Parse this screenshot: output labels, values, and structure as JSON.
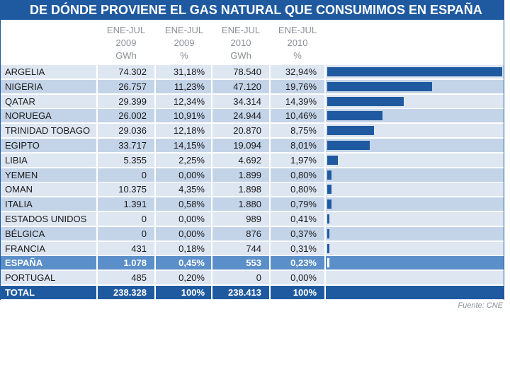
{
  "title": "DE DÓNDE PROVIENE EL GAS NATURAL QUE CONSUMIMOS EN ESPAÑA",
  "source": "Fuente: CNE",
  "colors": {
    "header": "#1f5aa0",
    "bar": "#1f5aa0",
    "row_light": "#dde6f1",
    "row_dark": "#c4d4e8",
    "highlight": "#5b8fc9"
  },
  "chart_data": {
    "type": "table",
    "title": "DE DÓNDE PROVIENE EL GAS NATURAL QUE CONSUMIMOS EN ESPAÑA",
    "columns": [
      {
        "line1": "ENE-JUL",
        "line2": "2009",
        "line3": "GWh"
      },
      {
        "line1": "ENE-JUL",
        "line2": "2009",
        "line3": "%"
      },
      {
        "line1": "ENE-JUL",
        "line2": "2010",
        "line3": "GWh"
      },
      {
        "line1": "ENE-JUL",
        "line2": "2010",
        "line3": "%"
      }
    ],
    "bar_series": "2010 %",
    "bar_max": 32.94,
    "rows": [
      {
        "country": "ARGELIA",
        "gwh_2009": "74.302",
        "pct_2009": "31,18%",
        "gwh_2010": "78.540",
        "pct_2010": "32,94%",
        "bar": 32.94
      },
      {
        "country": "NIGERIA",
        "gwh_2009": "26.757",
        "pct_2009": "11,23%",
        "gwh_2010": "47.120",
        "pct_2010": "19,76%",
        "bar": 19.76
      },
      {
        "country": "QATAR",
        "gwh_2009": "29.399",
        "pct_2009": "12,34%",
        "gwh_2010": "34.314",
        "pct_2010": "14,39%",
        "bar": 14.39
      },
      {
        "country": "NORUEGA",
        "gwh_2009": "26.002",
        "pct_2009": "10,91%",
        "gwh_2010": "24.944",
        "pct_2010": "10,46%",
        "bar": 10.46
      },
      {
        "country": "TRINIDAD TOBAGO",
        "gwh_2009": "29.036",
        "pct_2009": "12,18%",
        "gwh_2010": "20.870",
        "pct_2010": "8,75%",
        "bar": 8.75
      },
      {
        "country": "EGIPTO",
        "gwh_2009": "33.717",
        "pct_2009": "14,15%",
        "gwh_2010": "19.094",
        "pct_2010": "8,01%",
        "bar": 8.01
      },
      {
        "country": "LIBIA",
        "gwh_2009": "5.355",
        "pct_2009": "2,25%",
        "gwh_2010": "4.692",
        "pct_2010": "1,97%",
        "bar": 1.97
      },
      {
        "country": "YEMEN",
        "gwh_2009": "0",
        "pct_2009": "0,00%",
        "gwh_2010": "1.899",
        "pct_2010": "0,80%",
        "bar": 0.8
      },
      {
        "country": "OMAN",
        "gwh_2009": "10.375",
        "pct_2009": "4,35%",
        "gwh_2010": "1.898",
        "pct_2010": "0,80%",
        "bar": 0.8
      },
      {
        "country": "ITALIA",
        "gwh_2009": "1.391",
        "pct_2009": "0,58%",
        "gwh_2010": "1.880",
        "pct_2010": "0,79%",
        "bar": 0.79
      },
      {
        "country": "ESTADOS UNIDOS",
        "gwh_2009": "0",
        "pct_2009": "0,00%",
        "gwh_2010": "989",
        "pct_2010": "0,41%",
        "bar": 0.41
      },
      {
        "country": "BÉLGICA",
        "gwh_2009": "0",
        "pct_2009": "0,00%",
        "gwh_2010": "876",
        "pct_2010": "0,37%",
        "bar": 0.37
      },
      {
        "country": "FRANCIA",
        "gwh_2009": "431",
        "pct_2009": "0,18%",
        "gwh_2010": "744",
        "pct_2010": "0,31%",
        "bar": 0.31
      },
      {
        "country": "ESPAÑA",
        "gwh_2009": "1.078",
        "pct_2009": "0,45%",
        "gwh_2010": "553",
        "pct_2010": "0,23%",
        "bar": 0.23,
        "highlight": true
      },
      {
        "country": "PORTUGAL",
        "gwh_2009": "485",
        "pct_2009": "0,20%",
        "gwh_2010": "0",
        "pct_2010": "0,00%",
        "bar": 0.0
      }
    ],
    "total": {
      "country": "TOTAL",
      "gwh_2009": "238.328",
      "pct_2009": "100%",
      "gwh_2010": "238.413",
      "pct_2010": "100%"
    }
  }
}
